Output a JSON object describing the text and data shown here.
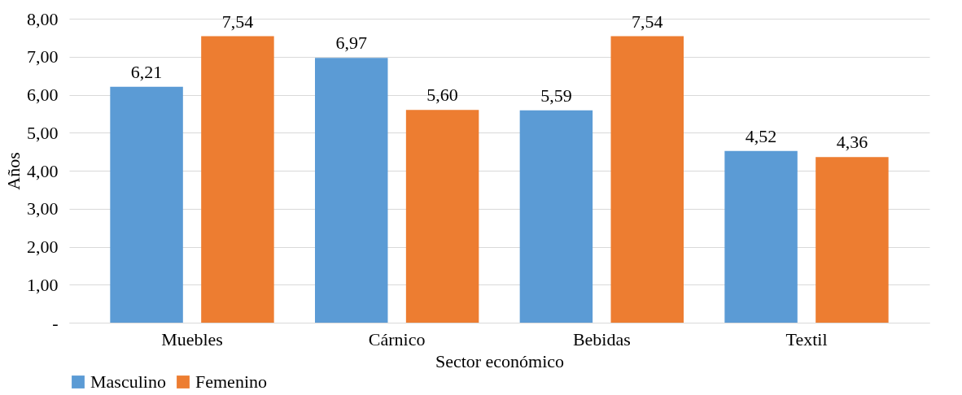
{
  "chart_data": {
    "type": "bar",
    "xlabel": "Sector económico",
    "ylabel": "Años",
    "categories": [
      "Muebles",
      "Cárnico",
      "Bebidas",
      "Textil"
    ],
    "series": [
      {
        "name": "Masculino",
        "color": "#5b9bd5",
        "values": [
          6.21,
          6.97,
          5.59,
          4.52
        ],
        "value_labels": [
          "6,21",
          "6,97",
          "5,59",
          "4,52"
        ]
      },
      {
        "name": "Femenino",
        "color": "#ed7d31",
        "values": [
          7.54,
          5.6,
          7.54,
          4.36
        ],
        "value_labels": [
          "7,54",
          "5,60",
          "7,54",
          "4,36"
        ]
      }
    ],
    "ylim": [
      0,
      8
    ],
    "yticks": [
      {
        "value": 0,
        "label": "-"
      },
      {
        "value": 1,
        "label": "1,00"
      },
      {
        "value": 2,
        "label": "2,00"
      },
      {
        "value": 3,
        "label": "3,00"
      },
      {
        "value": 4,
        "label": "4,00"
      },
      {
        "value": 5,
        "label": "5,00"
      },
      {
        "value": 6,
        "label": "6,00"
      },
      {
        "value": 7,
        "label": "7,00"
      },
      {
        "value": 8,
        "label": "8,00"
      }
    ],
    "grid": "y",
    "legend": "bottom"
  }
}
